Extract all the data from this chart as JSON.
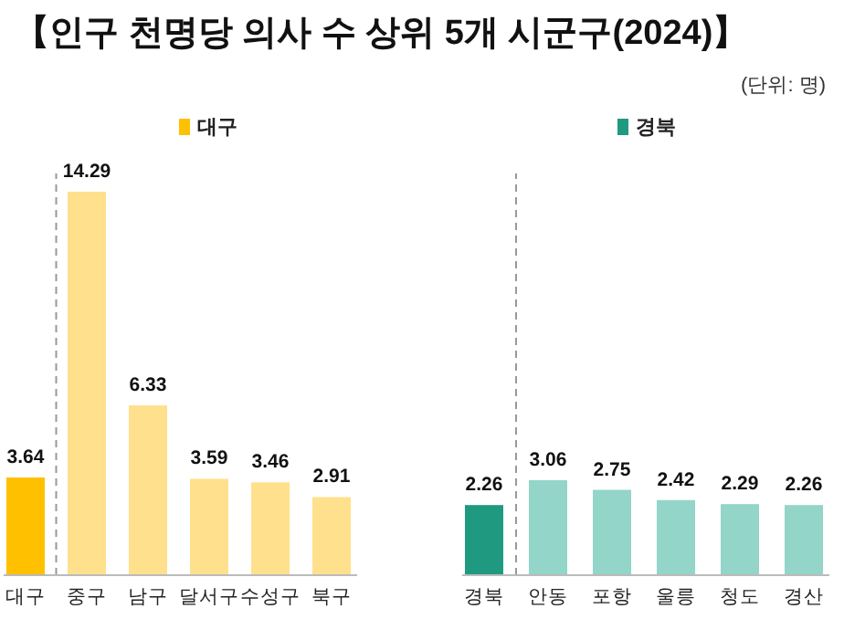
{
  "chart_data": [
    {
      "type": "bar",
      "title": "【인구 천명당 의사 수 상위 5개 시군구(2024)】",
      "annotations": [
        "(단위: 명)"
      ],
      "categories": [
        "대구",
        "중구",
        "남구",
        "달서구",
        "수성구",
        "북구"
      ],
      "series": [
        {
          "name": "대구",
          "color": "#ffc000",
          "colors": [
            "#ffc000",
            "#ffe08c",
            "#ffe08c",
            "#ffe08c",
            "#ffe08c",
            "#ffe08c"
          ],
          "values": [
            3.64,
            14.29,
            6.33,
            3.59,
            3.46,
            2.91
          ]
        }
      ],
      "data_labels": true,
      "legend": "top"
    },
    {
      "type": "bar",
      "categories": [
        "경북",
        "안동",
        "포항",
        "울릉",
        "청도",
        "경산"
      ],
      "series": [
        {
          "name": "경북",
          "color": "#1f9a80",
          "colors": [
            "#1f9a80",
            "#93d5c8",
            "#93d5c8",
            "#93d5c8",
            "#93d5c8",
            "#93d5c8"
          ],
          "values": [
            2.26,
            3.06,
            2.75,
            2.42,
            2.29,
            2.26
          ]
        }
      ],
      "data_labels": true,
      "legend": "top"
    }
  ]
}
